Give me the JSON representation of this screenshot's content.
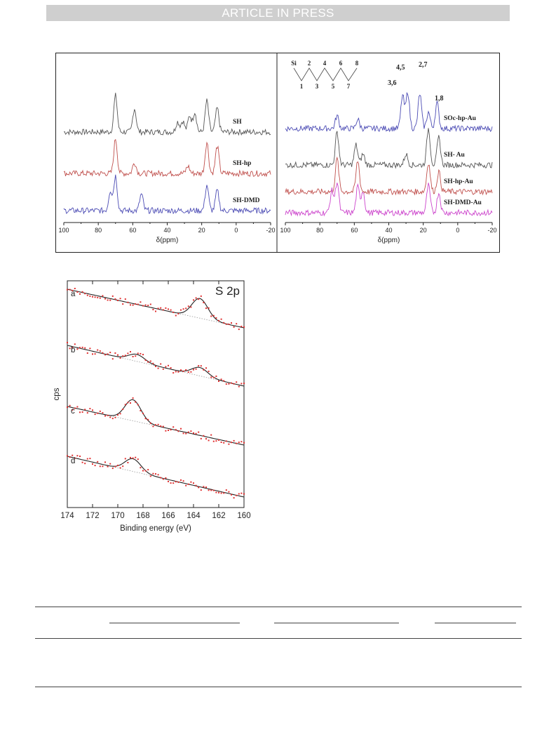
{
  "banner": "ARTICLE IN PRESS",
  "nmr_left": {
    "xlabel": "δ(ppm)",
    "xlim": [
      100,
      -20
    ],
    "ticks": [
      "100",
      "80",
      "60",
      "40",
      "20",
      "0",
      "-20"
    ],
    "series": [
      {
        "name": "SH",
        "color": "#555555",
        "peaks": [
          [
            70,
            1.0
          ],
          [
            59,
            0.65
          ],
          [
            34,
            0.28
          ],
          [
            31,
            0.3
          ],
          [
            27,
            0.45
          ],
          [
            24,
            0.55
          ],
          [
            17,
            0.85
          ],
          [
            11,
            0.65
          ]
        ]
      },
      {
        "name": "SH-hp",
        "color": "#c0504d",
        "peaks": [
          [
            70,
            0.95
          ],
          [
            59,
            0.3
          ],
          [
            28,
            0.2
          ],
          [
            17,
            0.85
          ],
          [
            11,
            0.75
          ]
        ]
      },
      {
        "name": "SH-DMD",
        "color": "#4b4bb4",
        "peaks": [
          [
            73,
            0.55
          ],
          [
            70,
            0.95
          ],
          [
            55,
            0.45
          ],
          [
            17,
            0.7
          ],
          [
            11,
            0.55
          ]
        ]
      }
    ]
  },
  "nmr_right": {
    "xlabel": "δ(ppm)",
    "xlim": [
      100,
      -20
    ],
    "ticks": [
      "100",
      "80",
      "60",
      "40",
      "20",
      "0",
      "-20"
    ],
    "structure": {
      "atoms": [
        "Si",
        "1",
        "2",
        "3",
        "4",
        "5",
        "6",
        "7",
        "8"
      ]
    },
    "peak_labels": [
      "3,6",
      "4,5",
      "2,7",
      "1,8"
    ],
    "series": [
      {
        "name": "SOc-hp-Au",
        "color": "#4b4bb4",
        "peaks": [
          [
            70,
            0.35
          ],
          [
            58,
            0.25
          ],
          [
            32,
            0.9
          ],
          [
            29,
            1.0
          ],
          [
            22,
            0.95
          ],
          [
            17,
            0.45
          ],
          [
            12,
            0.7
          ]
        ]
      },
      {
        "name": "SH- Au",
        "color": "#555555",
        "peaks": [
          [
            70,
            0.9
          ],
          [
            59,
            0.55
          ],
          [
            55,
            0.3
          ],
          [
            30,
            0.3
          ],
          [
            17,
            1.0
          ],
          [
            11,
            0.75
          ]
        ]
      },
      {
        "name": "SH-hp-Au",
        "color": "#c0504d",
        "peaks": [
          [
            70,
            0.9
          ],
          [
            58,
            0.85
          ],
          [
            17,
            0.8
          ],
          [
            11,
            0.55
          ]
        ]
      },
      {
        "name": "SH-DMD-Au",
        "color": "#cc44cc",
        "peaks": [
          [
            73,
            0.6
          ],
          [
            70,
            0.85
          ],
          [
            58,
            0.7
          ],
          [
            55,
            0.6
          ],
          [
            17,
            0.75
          ],
          [
            11,
            0.55
          ]
        ]
      }
    ]
  },
  "xps": {
    "title": "S 2p",
    "ylabel": "cps",
    "xlabel": "Binding energy (eV)",
    "xlim": [
      174,
      160
    ],
    "ticks": [
      "174",
      "172",
      "170",
      "168",
      "166",
      "164",
      "162",
      "160"
    ],
    "series": [
      {
        "name": "a",
        "peak": 163.5,
        "amp": 28
      },
      {
        "name": "b",
        "peak": 163.5,
        "amp": 12,
        "peak2": 168.5,
        "amp2": 10
      },
      {
        "name": "c",
        "peak": 168.8,
        "amp": 30
      },
      {
        "name": "d",
        "peak": 168.8,
        "amp": 18
      }
    ]
  }
}
